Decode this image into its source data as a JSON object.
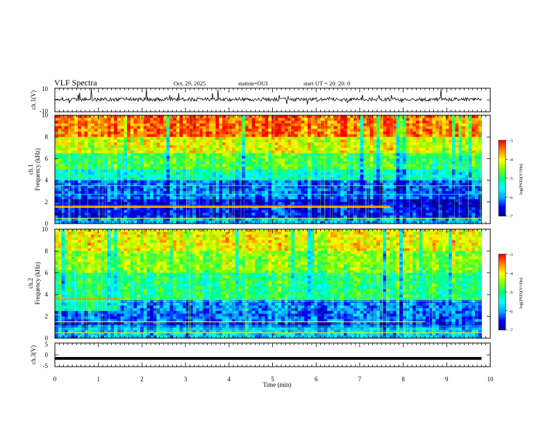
{
  "header": {
    "title": "VLF Spectra",
    "date": "Oct. 29, 2025",
    "station": "station=OUI",
    "start": "start  UT  =   20: 20: 0"
  },
  "chart_data": [
    {
      "type": "line",
      "panel": "ch1-waveform",
      "ylabel": "ch.1(V)",
      "yticks": [
        "10",
        "-10"
      ],
      "ylim": [
        -10,
        10
      ],
      "xlim": [
        0,
        10
      ],
      "data_end_min": 9.8,
      "approx_level": 0.5
    },
    {
      "type": "heatmap",
      "panel": "ch1-spectrogram",
      "ylabel_line1": "ch.1",
      "ylabel_line2": "Frequency  (kHz)",
      "yticks": [
        "10",
        "8",
        "6",
        "4",
        "2",
        "0"
      ],
      "ylim": [
        0,
        10
      ],
      "xlim": [
        0,
        10
      ],
      "colorbar_label": "log(PSD)(V²/Hz)",
      "colorbar_ticks": [
        "-3",
        "-4",
        "-5",
        "-6",
        "-7"
      ],
      "colorbar_range": [
        -7,
        -3
      ]
    },
    {
      "type": "heatmap",
      "panel": "ch2-spectrogram",
      "ylabel_line1": "ch.2",
      "ylabel_line2": "Frequency  (kHz)",
      "yticks": [
        "10",
        "8",
        "6",
        "4",
        "2",
        "0"
      ],
      "ylim": [
        0,
        10
      ],
      "xlim": [
        0,
        10
      ],
      "colorbar_label": "log(PSD)(V²/Hz)",
      "colorbar_ticks": [
        "-3",
        "-4",
        "-5",
        "-6",
        "-7"
      ],
      "colorbar_range": [
        -7,
        -3
      ]
    },
    {
      "type": "line",
      "panel": "ch3-waveform",
      "ylabel": "ch.3(V)",
      "yticks": [
        "5",
        "0",
        "-5"
      ],
      "ylim": [
        -5,
        5
      ],
      "xlim": [
        0,
        10
      ],
      "data_end_min": 9.8,
      "approx_level": -1.5,
      "xlabel": "Time  (min)",
      "xticks": [
        "0",
        "1",
        "2",
        "3",
        "4",
        "5",
        "6",
        "7",
        "8",
        "9",
        "10"
      ]
    }
  ],
  "colors": {
    "colormap": [
      "#00008b",
      "#0000ff",
      "#00aaff",
      "#00ffff",
      "#00ff80",
      "#80ff00",
      "#ffff00",
      "#ff8800",
      "#ff0000",
      "#ffffff"
    ],
    "axis": "#000000",
    "trace": "#000000"
  }
}
